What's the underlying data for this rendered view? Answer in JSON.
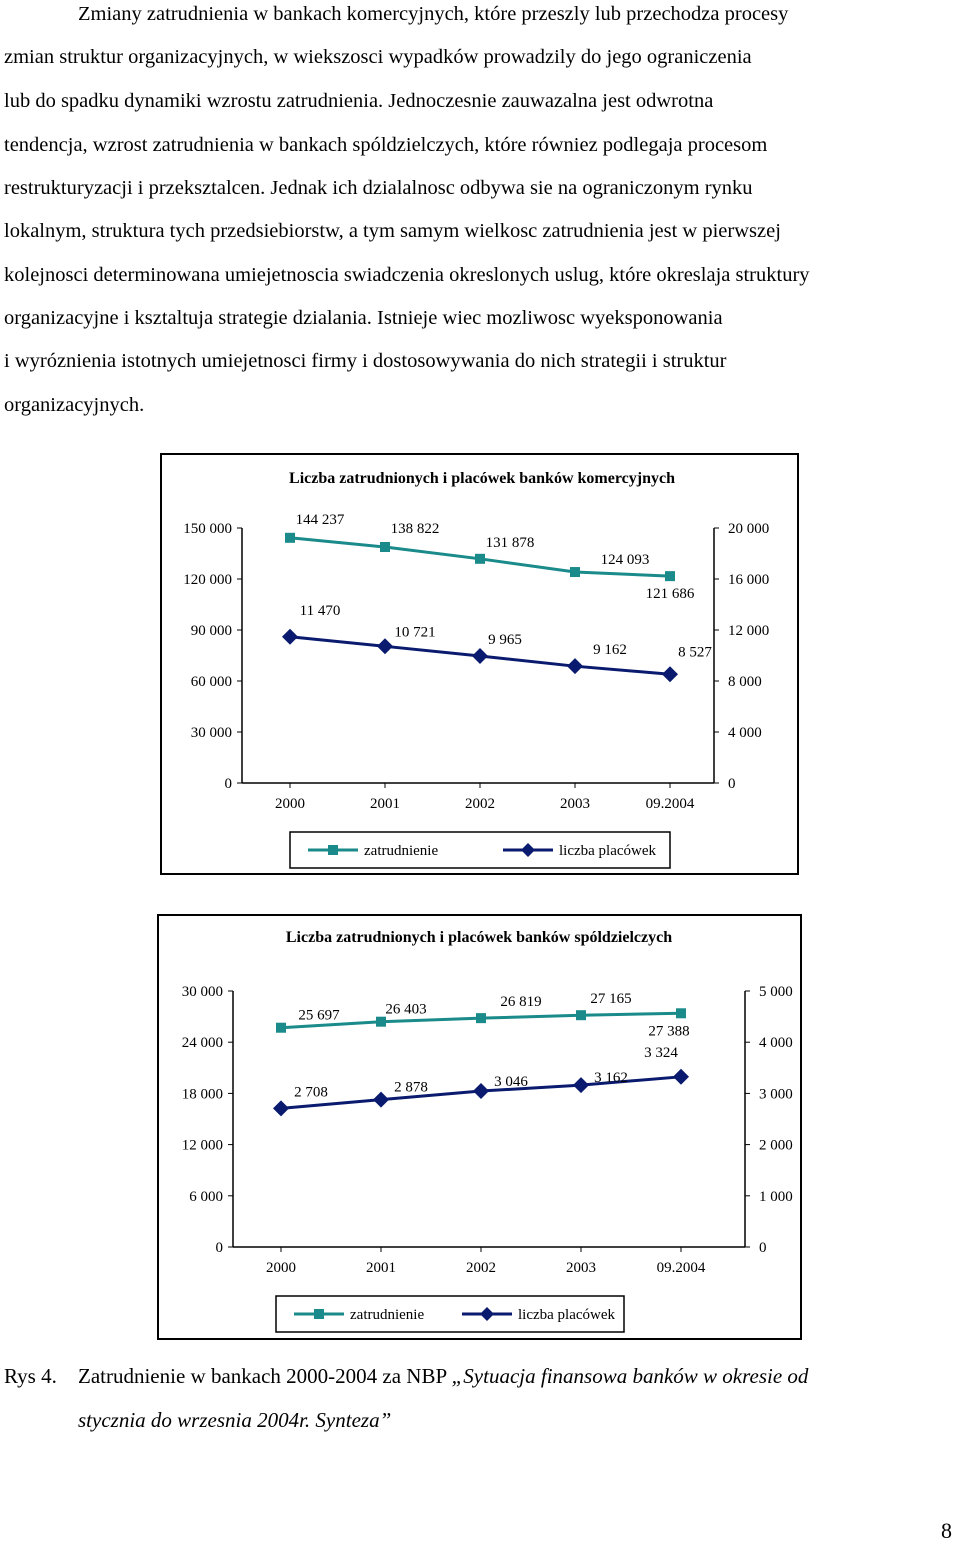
{
  "paragraph": {
    "lines": [
      "Zmiany zatrudnienia w bankach komercyjnych, które przeszly lub przechodza procesy",
      "zmian struktur organizacyjnych, w wiekszosci wypadków prowadzily do jego ograniczenia",
      "lub do spadku dynamiki wzrostu zatrudnienia. Jednoczesnie zauwazalna jest odwrotna",
      "tendencja, wzrost zatrudnienia w bankach spóldzielczych, które równiez podlegaja procesom",
      "restrukturyzacji i przeksztalcen. Jednak ich dzialalnosc odbywa sie na ograniczonym rynku",
      "lokalnym, struktura tych przedsiebiorstw, a tym samym wielkosc zatrudnienia jest w pierwszej",
      "kolejnosci determinowana umiejetnoscia swiadczenia okreslonych uslug, które okreslaja struktury",
      "organizacyjne i ksztaltuja strategie dzialania. Istnieje wiec mozliwosc wyeksponowania",
      "i wyróznienia istotnych umiejetnosci firmy i dostosowywania do nich strategii i struktur",
      "organizacyjnych."
    ]
  },
  "chart_data": [
    {
      "type": "line",
      "title": "Liczba zatrudnionych i placówek banków komercyjnych",
      "categories": [
        "2000",
        "2001",
        "2002",
        "2003",
        "09.2004"
      ],
      "y_left": {
        "ylim": [
          0,
          150000
        ],
        "ticks": [
          "0",
          "30 000",
          "60 000",
          "90 000",
          "120 000",
          "150 000"
        ]
      },
      "y_right": {
        "ylim": [
          0,
          20000
        ],
        "ticks": [
          "0",
          "4 000",
          "8 000",
          "12 000",
          "16 000",
          "20 000"
        ]
      },
      "series": [
        {
          "name": "zatrudnienie",
          "axis": "left",
          "color": "#1a8a8a",
          "marker": "square",
          "values": [
            144237,
            138822,
            131878,
            124093,
            121686
          ],
          "labels": [
            "144 237",
            "138 822",
            "131 878",
            "124 093",
            "121 686"
          ]
        },
        {
          "name": "liczba placówek",
          "axis": "right",
          "color": "#0a1a6e",
          "marker": "diamond",
          "values": [
            11470,
            10721,
            9965,
            9162,
            8527
          ],
          "labels": [
            "11 470",
            "10 721",
            "9 965",
            "9 162",
            "8 527"
          ]
        }
      ],
      "legend": "bottom",
      "grid": false
    },
    {
      "type": "line",
      "title": "Liczba zatrudnionych i placówek banków spóldzielczych",
      "categories": [
        "2000",
        "2001",
        "2002",
        "2003",
        "09.2004"
      ],
      "y_left": {
        "ylim": [
          0,
          30000
        ],
        "ticks": [
          "0",
          "6 000",
          "12 000",
          "18 000",
          "24 000",
          "30 000"
        ]
      },
      "y_right": {
        "ylim": [
          0,
          5000
        ],
        "ticks": [
          "0",
          "1 000",
          "2 000",
          "3 000",
          "4 000",
          "5 000"
        ]
      },
      "series": [
        {
          "name": "zatrudnienie",
          "axis": "left",
          "color": "#1a8a8a",
          "marker": "square",
          "values": [
            25697,
            26403,
            26819,
            27165,
            27388
          ],
          "labels": [
            "25 697",
            "26 403",
            "26 819",
            "27 165",
            "27 388"
          ]
        },
        {
          "name": "liczba placówek",
          "axis": "right",
          "color": "#0a1a6e",
          "marker": "diamond",
          "values": [
            2708,
            2878,
            3046,
            3162,
            3324
          ],
          "labels": [
            "2 708",
            "2 878",
            "3 046",
            "3 162",
            "3 324"
          ]
        }
      ],
      "legend": "bottom",
      "grid": false
    }
  ],
  "caption": {
    "label": "Rys 4.",
    "text": "Zatrudnienie w bankach 2000-2004 za NBP",
    "italic_line1": "„Sytuacja finansowa banków w okresie od",
    "italic_line2": "stycznia do wrzesnia 2004r. Synteza”"
  },
  "page_number": "8"
}
